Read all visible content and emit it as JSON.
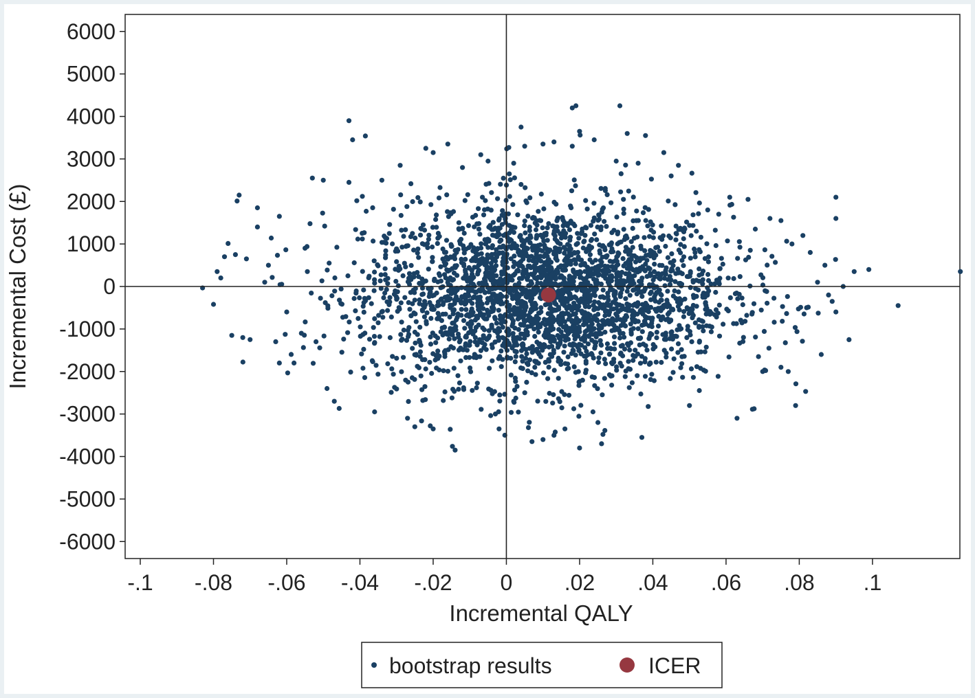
{
  "chart_data": {
    "type": "scatter",
    "title": "",
    "xlabel": "Incremental QALY",
    "ylabel": "Incremental Cost (£)",
    "xlim": [
      -0.1,
      0.128
    ],
    "ylim": [
      -6400,
      6400
    ],
    "x_ticks": [
      {
        "value": -0.1,
        "label": "-.1"
      },
      {
        "value": -0.08,
        "label": "-.08"
      },
      {
        "value": -0.06,
        "label": "-.06"
      },
      {
        "value": -0.04,
        "label": "-.04"
      },
      {
        "value": -0.02,
        "label": "-.02"
      },
      {
        "value": 0,
        "label": "0"
      },
      {
        "value": 0.02,
        "label": ".02"
      },
      {
        "value": 0.04,
        "label": ".04"
      },
      {
        "value": 0.06,
        "label": ".06"
      },
      {
        "value": 0.08,
        "label": ".08"
      },
      {
        "value": 0.1,
        "label": ".1"
      }
    ],
    "y_ticks": [
      {
        "value": 6000,
        "label": "6000"
      },
      {
        "value": 5000,
        "label": "5000"
      },
      {
        "value": 4000,
        "label": "4000"
      },
      {
        "value": 3000,
        "label": "3000"
      },
      {
        "value": 2000,
        "label": "2000"
      },
      {
        "value": 1000,
        "label": "1000"
      },
      {
        "value": 0,
        "label": "0"
      },
      {
        "value": -1000,
        "label": "-1000"
      },
      {
        "value": -2000,
        "label": "-2000"
      },
      {
        "value": -3000,
        "label": "-3000"
      },
      {
        "value": -4000,
        "label": "-4000"
      },
      {
        "value": -5000,
        "label": "-5000"
      },
      {
        "value": -6000,
        "label": "-6000"
      }
    ],
    "reference_lines": {
      "x": 0,
      "y": 0
    },
    "grid": false,
    "legend_position": "bottom-center",
    "series": [
      {
        "name": "bootstrap results",
        "marker": "small-dot",
        "color": "#1a4063",
        "points": [
          [
            -0.08,
            -420
          ],
          [
            -0.079,
            350
          ],
          [
            -0.078,
            200
          ],
          [
            -0.077,
            700
          ],
          [
            -0.075,
            -1150
          ],
          [
            -0.074,
            750
          ],
          [
            -0.073,
            2150
          ],
          [
            -0.072,
            -1200
          ],
          [
            -0.071,
            650
          ],
          [
            -0.07,
            -1250
          ],
          [
            -0.068,
            1850
          ],
          [
            -0.068,
            1400
          ],
          [
            -0.066,
            100
          ],
          [
            -0.065,
            500
          ],
          [
            -0.063,
            -1300
          ],
          [
            -0.062,
            1650
          ],
          [
            -0.062,
            -1800
          ],
          [
            -0.06,
            -600
          ],
          [
            -0.058,
            -1800
          ],
          [
            -0.056,
            -1100
          ],
          [
            -0.055,
            900
          ],
          [
            -0.053,
            2550
          ],
          [
            -0.052,
            -1300
          ],
          [
            -0.05,
            2500
          ],
          [
            -0.049,
            -2400
          ],
          [
            -0.047,
            -2700
          ],
          [
            -0.043,
            2450
          ],
          [
            -0.043,
            3900
          ],
          [
            -0.042,
            3450
          ],
          [
            -0.036,
            -2950
          ],
          [
            -0.034,
            2500
          ],
          [
            -0.029,
            2850
          ],
          [
            -0.027,
            -3100
          ],
          [
            -0.025,
            -3300
          ],
          [
            -0.022,
            3250
          ],
          [
            -0.02,
            3150
          ],
          [
            -0.02,
            -3350
          ],
          [
            -0.016,
            3350
          ],
          [
            -0.014,
            -3850
          ],
          [
            -0.012,
            2800
          ],
          [
            -0.007,
            3100
          ],
          [
            -0.005,
            2950
          ],
          [
            -0.003,
            -3000
          ],
          [
            -0.002,
            -3350
          ],
          [
            0.002,
            2900
          ],
          [
            0.002,
            -2700
          ],
          [
            0.004,
            3750
          ],
          [
            0.004,
            2400
          ],
          [
            0.005,
            3300
          ],
          [
            0.007,
            -3650
          ],
          [
            0.01,
            3350
          ],
          [
            0.01,
            -3600
          ],
          [
            0.013,
            3400
          ],
          [
            0.013,
            -3500
          ],
          [
            0.016,
            -3350
          ],
          [
            0.018,
            4200
          ],
          [
            0.018,
            3300
          ],
          [
            0.019,
            4250
          ],
          [
            0.02,
            3650
          ],
          [
            0.02,
            -3800
          ],
          [
            0.024,
            3450
          ],
          [
            0.025,
            -3200
          ],
          [
            0.026,
            -3700
          ],
          [
            0.03,
            2950
          ],
          [
            0.031,
            4250
          ],
          [
            0.033,
            3600
          ],
          [
            0.036,
            2900
          ],
          [
            0.038,
            3550
          ],
          [
            0.037,
            -3550
          ],
          [
            0.043,
            3150
          ],
          [
            0.045,
            2600
          ],
          [
            0.047,
            2850
          ],
          [
            0.05,
            -2800
          ],
          [
            0.055,
            1800
          ],
          [
            0.058,
            1700
          ],
          [
            0.061,
            2100
          ],
          [
            0.063,
            -3100
          ],
          [
            0.066,
            2050
          ],
          [
            0.068,
            1350
          ],
          [
            0.07,
            -2000
          ],
          [
            0.072,
            1600
          ],
          [
            0.075,
            1550
          ],
          [
            0.075,
            -1900
          ],
          [
            0.077,
            -2000
          ],
          [
            0.078,
            1000
          ],
          [
            0.079,
            -2800
          ],
          [
            0.081,
            1200
          ],
          [
            0.082,
            -500
          ],
          [
            0.083,
            800
          ],
          [
            0.085,
            100
          ],
          [
            0.086,
            -1600
          ],
          [
            0.087,
            500
          ],
          [
            0.088,
            -200
          ],
          [
            0.089,
            -350
          ],
          [
            0.09,
            2100
          ],
          [
            0.09,
            1600
          ],
          [
            0.09,
            -600
          ],
          [
            0.092,
            0
          ],
          [
            0.095,
            350
          ],
          [
            0.099,
            400
          ],
          [
            0.107,
            -450
          ],
          [
            0.124,
            350
          ]
        ],
        "core_cloud": {
          "description_hidden": true,
          "x_mean": 0.011,
          "x_sd": 0.025,
          "y_mean": -200,
          "y_sd": 1050,
          "n": 2900
        }
      },
      {
        "name": "ICER",
        "marker": "large-dot",
        "color": "#963840",
        "points": [
          [
            0.0115,
            -200
          ]
        ]
      }
    ]
  }
}
